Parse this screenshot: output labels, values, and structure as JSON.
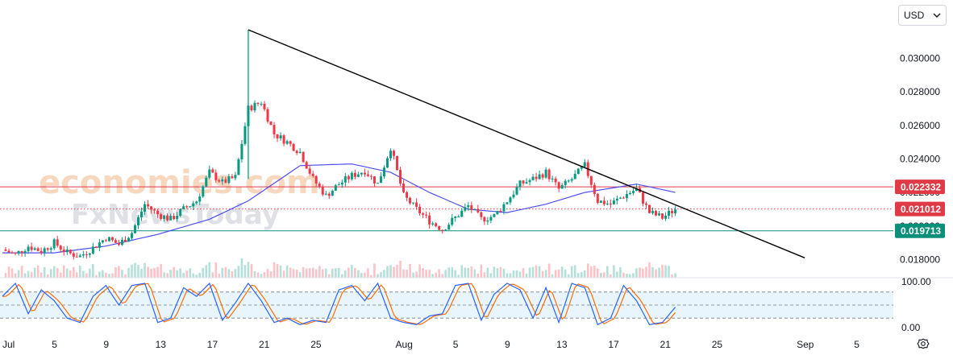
{
  "currency": {
    "label": "USD",
    "icon": "chevron-down-icon"
  },
  "settings_icon": "gear-icon",
  "watermark": {
    "line1": "economies.com",
    "line2": "FxNewsToday"
  },
  "colors": {
    "up": "#089981",
    "down": "#f23645",
    "ma": "#4d4ff5",
    "trendline": "#000000",
    "resistance": "#e03a46",
    "support": "#0a8f7a",
    "band": "#e3f2fd",
    "stoch_k": "#2962ff",
    "stoch_d": "#ff6d00"
  },
  "chart_data": {
    "type": "candlestick",
    "price_axis": {
      "ticks": [
        0.018,
        0.02,
        0.022,
        0.024,
        0.026,
        0.028,
        0.03
      ],
      "tick_labels": [
        "0.018000",
        "0.020000",
        "0.022000",
        "0.024000",
        "0.026000",
        "0.028000",
        "0.030000"
      ],
      "range": [
        0.0173,
        0.0317
      ]
    },
    "time_axis": {
      "labels": [
        "Jul",
        "5",
        "9",
        "13",
        "17",
        "21",
        "25",
        "Aug",
        "5",
        "9",
        "13",
        "17",
        "21",
        "25",
        "Sep",
        "5"
      ],
      "range": [
        "2024-07-01",
        "2024-09-08"
      ]
    },
    "price_path": [
      [
        "2024-07-01",
        0.0186
      ],
      [
        "2024-07-02",
        0.0183
      ],
      [
        "2024-07-03",
        0.0188
      ],
      [
        "2024-07-04",
        0.0185
      ],
      [
        "2024-07-05",
        0.019
      ],
      [
        "2024-07-06",
        0.0184
      ],
      [
        "2024-07-07",
        0.0182
      ],
      [
        "2024-07-08",
        0.0187
      ],
      [
        "2024-07-09",
        0.0193
      ],
      [
        "2024-07-10",
        0.0189
      ],
      [
        "2024-07-11",
        0.0196
      ],
      [
        "2024-07-12",
        0.0213
      ],
      [
        "2024-07-13",
        0.0207
      ],
      [
        "2024-07-14",
        0.0204
      ],
      [
        "2024-07-15",
        0.021
      ],
      [
        "2024-07-16",
        0.0215
      ],
      [
        "2024-07-17",
        0.0232
      ],
      [
        "2024-07-18",
        0.0226
      ],
      [
        "2024-07-19",
        0.0229
      ],
      [
        "2024-07-20",
        0.027
      ],
      [
        "2024-07-21",
        0.0274
      ],
      [
        "2024-07-22",
        0.0255
      ],
      [
        "2024-07-23",
        0.025
      ],
      [
        "2024-07-24",
        0.0244
      ],
      [
        "2024-07-25",
        0.0228
      ],
      [
        "2024-07-26",
        0.0218
      ],
      [
        "2024-07-27",
        0.0225
      ],
      [
        "2024-07-28",
        0.023
      ],
      [
        "2024-07-29",
        0.0233
      ],
      [
        "2024-07-30",
        0.0225
      ],
      [
        "2024-07-31",
        0.0247
      ],
      [
        "2024-08-01",
        0.0218
      ],
      [
        "2024-08-02",
        0.021
      ],
      [
        "2024-08-03",
        0.0203
      ],
      [
        "2024-08-04",
        0.0198
      ],
      [
        "2024-08-05",
        0.0205
      ],
      [
        "2024-08-06",
        0.0212
      ],
      [
        "2024-08-07",
        0.0204
      ],
      [
        "2024-08-08",
        0.0206
      ],
      [
        "2024-08-09",
        0.0215
      ],
      [
        "2024-08-10",
        0.0225
      ],
      [
        "2024-08-11",
        0.0228
      ],
      [
        "2024-08-12",
        0.0232
      ],
      [
        "2024-08-13",
        0.0222
      ],
      [
        "2024-08-14",
        0.0228
      ],
      [
        "2024-08-15",
        0.0236
      ],
      [
        "2024-08-16",
        0.0215
      ],
      [
        "2024-08-17",
        0.0213
      ],
      [
        "2024-08-18",
        0.0218
      ],
      [
        "2024-08-19",
        0.0222
      ],
      [
        "2024-08-20",
        0.0208
      ],
      [
        "2024-08-21",
        0.0205
      ],
      [
        "2024-08-22",
        0.021
      ]
    ],
    "moving_average": [
      [
        "2024-07-01",
        0.0184
      ],
      [
        "2024-07-05",
        0.0184
      ],
      [
        "2024-07-09",
        0.0188
      ],
      [
        "2024-07-13",
        0.0195
      ],
      [
        "2024-07-17",
        0.0204
      ],
      [
        "2024-07-20",
        0.0215
      ],
      [
        "2024-07-24",
        0.0236
      ],
      [
        "2024-07-28",
        0.0237
      ],
      [
        "2024-07-31",
        0.0232
      ],
      [
        "2024-08-03",
        0.022
      ],
      [
        "2024-08-06",
        0.021
      ],
      [
        "2024-08-09",
        0.0208
      ],
      [
        "2024-08-12",
        0.0213
      ],
      [
        "2024-08-15",
        0.022
      ],
      [
        "2024-08-19",
        0.0225
      ],
      [
        "2024-08-22",
        0.022
      ]
    ],
    "trendline": [
      [
        "2024-07-20",
        0.0317
      ],
      [
        "2024-09-01",
        0.0181
      ]
    ],
    "levels": [
      {
        "name": "resistance",
        "value": 0.022332,
        "label": "0.022332",
        "style": "solid"
      },
      {
        "name": "current",
        "value": 0.021012,
        "label": "0.021012",
        "style": "dotted"
      },
      {
        "name": "support",
        "value": 0.019713,
        "label": "0.019713",
        "style": "solid"
      }
    ],
    "oscillator": {
      "axis_labels": [
        "100.00",
        "0.00"
      ],
      "band_levels": [
        80,
        20
      ],
      "midline": 50,
      "k_path": [
        [
          "2024-07-01",
          70
        ],
        [
          "2024-07-02",
          100
        ],
        [
          "2024-07-03",
          30
        ],
        [
          "2024-07-04",
          85
        ],
        [
          "2024-07-05",
          60
        ],
        [
          "2024-07-06",
          20
        ],
        [
          "2024-07-07",
          10
        ],
        [
          "2024-07-08",
          70
        ],
        [
          "2024-07-09",
          95
        ],
        [
          "2024-07-10",
          50
        ],
        [
          "2024-07-11",
          95
        ],
        [
          "2024-07-12",
          100
        ],
        [
          "2024-07-13",
          10
        ],
        [
          "2024-07-14",
          20
        ],
        [
          "2024-07-15",
          90
        ],
        [
          "2024-07-16",
          70
        ],
        [
          "2024-07-17",
          100
        ],
        [
          "2024-07-18",
          15
        ],
        [
          "2024-07-19",
          55
        ],
        [
          "2024-07-20",
          100
        ],
        [
          "2024-07-21",
          60
        ],
        [
          "2024-07-22",
          10
        ],
        [
          "2024-07-23",
          20
        ],
        [
          "2024-07-24",
          5
        ],
        [
          "2024-07-25",
          15
        ],
        [
          "2024-07-26",
          10
        ],
        [
          "2024-07-27",
          85
        ],
        [
          "2024-07-28",
          95
        ],
        [
          "2024-07-29",
          60
        ],
        [
          "2024-07-30",
          100
        ],
        [
          "2024-07-31",
          20
        ],
        [
          "2024-08-01",
          10
        ],
        [
          "2024-08-02",
          5
        ],
        [
          "2024-08-03",
          25
        ],
        [
          "2024-08-04",
          30
        ],
        [
          "2024-08-05",
          95
        ],
        [
          "2024-08-06",
          100
        ],
        [
          "2024-08-07",
          15
        ],
        [
          "2024-08-08",
          75
        ],
        [
          "2024-08-09",
          100
        ],
        [
          "2024-08-10",
          85
        ],
        [
          "2024-08-11",
          20
        ],
        [
          "2024-08-12",
          90
        ],
        [
          "2024-08-13",
          10
        ],
        [
          "2024-08-14",
          100
        ],
        [
          "2024-08-15",
          90
        ],
        [
          "2024-08-16",
          5
        ],
        [
          "2024-08-17",
          20
        ],
        [
          "2024-08-18",
          95
        ],
        [
          "2024-08-19",
          60
        ],
        [
          "2024-08-20",
          5
        ],
        [
          "2024-08-21",
          10
        ],
        [
          "2024-08-22",
          45
        ]
      ]
    }
  }
}
